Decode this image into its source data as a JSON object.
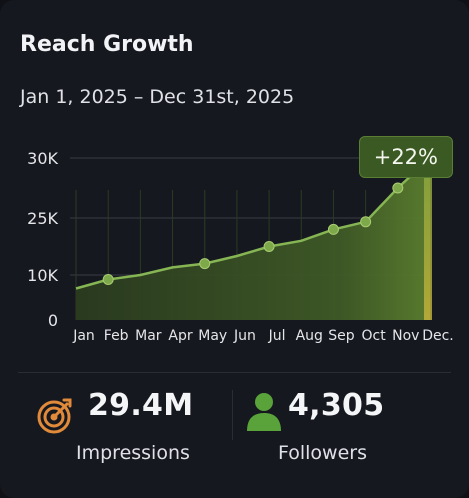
{
  "card": {
    "title": "Reach Growth",
    "date_range": "Jan 1, 2025 – Dec 31st, 2025",
    "growth_badge": "+22%"
  },
  "colors": {
    "background": "#16181f",
    "accent": "#5f8f34",
    "line": "#7fae4c",
    "badge": "#3b5a23",
    "icon_orange": "#e08a3a",
    "icon_green": "#5aa23a"
  },
  "chart_data": {
    "type": "area",
    "categories": [
      "Jan",
      "Feb",
      "Mar",
      "Apr",
      "May",
      "Jun",
      "Jul",
      "Aug",
      "Sep",
      "Oct",
      "Nov",
      "Dec."
    ],
    "y_tick_labels": [
      "0",
      "10K",
      "25K",
      "30K"
    ],
    "series": [
      {
        "values": [
          7000,
          9000,
          10000,
          12000,
          13000,
          15000,
          17500,
          19000,
          22000,
          24000,
          27500,
          30000
        ]
      }
    ],
    "grid": true
  },
  "stats": {
    "impressions": {
      "value": "29.4M",
      "label": "Impressions",
      "icon": "target-icon"
    },
    "followers": {
      "value": "4,305",
      "label": "Followers",
      "icon": "person-icon"
    }
  }
}
